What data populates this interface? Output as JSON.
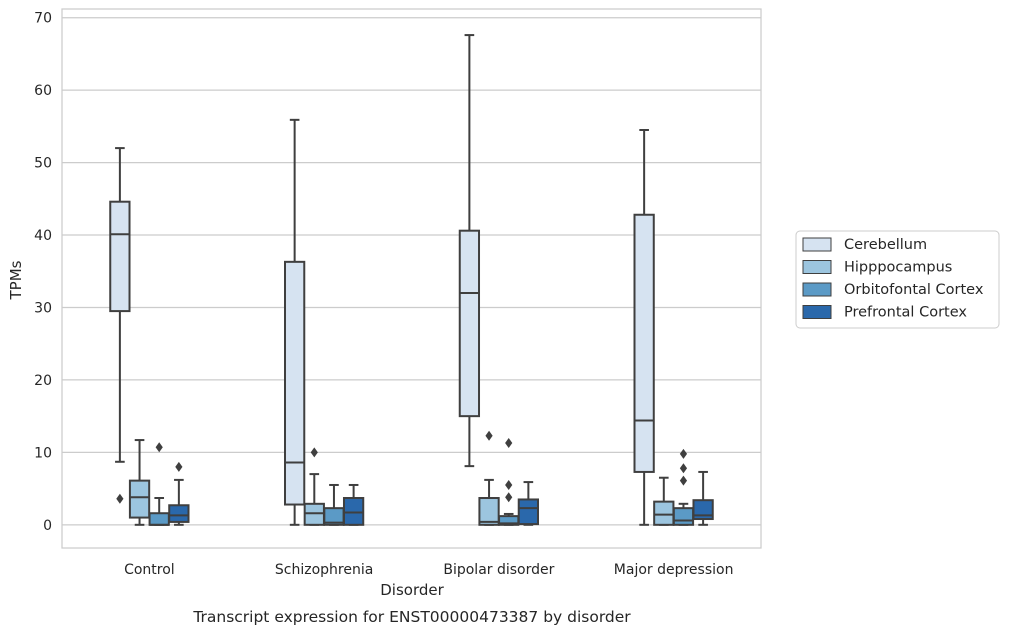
{
  "chart_data": {
    "type": "box",
    "caption": "Transcript expression for ENST00000473387 by disorder",
    "xlabel": "Disorder",
    "ylabel": "TPMs",
    "ylim": [
      -3.2,
      71.2
    ],
    "yticks": [
      0,
      10,
      20,
      30,
      40,
      50,
      60,
      70
    ],
    "grid": "horizontal",
    "legend_position": "right",
    "categories": [
      "Control",
      "Schizophrenia",
      "Bipolar disorder",
      "Major depression"
    ],
    "series": [
      {
        "name": "Cerebellum",
        "color": "#d6e3f1",
        "boxes": [
          {
            "whislo": 8.7,
            "q1": 29.5,
            "med": 40.1,
            "q3": 44.6,
            "whishi": 52.0,
            "fliers": [
              3.6
            ]
          },
          {
            "whislo": 0.0,
            "q1": 2.8,
            "med": 8.6,
            "q3": 36.3,
            "whishi": 55.9,
            "fliers": []
          },
          {
            "whislo": 8.1,
            "q1": 15.0,
            "med": 32.0,
            "q3": 40.6,
            "whishi": 67.6,
            "fliers": []
          },
          {
            "whislo": 0.0,
            "q1": 7.3,
            "med": 14.4,
            "q3": 42.8,
            "whishi": 54.5,
            "fliers": []
          }
        ]
      },
      {
        "name": "Hipppocampus",
        "color": "#9cc5df",
        "boxes": [
          {
            "whislo": 0.0,
            "q1": 1.0,
            "med": 3.8,
            "q3": 6.1,
            "whishi": 11.7,
            "fliers": []
          },
          {
            "whislo": 0.0,
            "q1": 0.0,
            "med": 1.6,
            "q3": 2.9,
            "whishi": 7.0,
            "fliers": [
              10.0
            ]
          },
          {
            "whislo": 0.0,
            "q1": 0.0,
            "med": 0.4,
            "q3": 3.7,
            "whishi": 6.2,
            "fliers": [
              12.3
            ]
          },
          {
            "whislo": 0.0,
            "q1": 0.0,
            "med": 1.4,
            "q3": 3.2,
            "whishi": 6.5,
            "fliers": []
          }
        ]
      },
      {
        "name": "Orbitofontal Cortex",
        "color": "#5b9ac6",
        "boxes": [
          {
            "whislo": 0.0,
            "q1": 0.0,
            "med": 0.0,
            "q3": 1.6,
            "whishi": 3.7,
            "fliers": [
              10.7
            ]
          },
          {
            "whislo": 0.0,
            "q1": 0.0,
            "med": 0.3,
            "q3": 2.3,
            "whishi": 5.5,
            "fliers": []
          },
          {
            "whislo": 0.0,
            "q1": 0.0,
            "med": 0.2,
            "q3": 1.2,
            "whishi": 1.5,
            "fliers": [
              3.8,
              5.5,
              11.3
            ]
          },
          {
            "whislo": 0.0,
            "q1": 0.0,
            "med": 0.6,
            "q3": 2.3,
            "whishi": 2.9,
            "fliers": [
              6.1,
              7.8,
              9.8
            ]
          }
        ]
      },
      {
        "name": "Prefrontal Cortex",
        "color": "#2a68ab",
        "boxes": [
          {
            "whislo": 0.0,
            "q1": 0.4,
            "med": 1.3,
            "q3": 2.7,
            "whishi": 6.2,
            "fliers": [
              8.0
            ]
          },
          {
            "whislo": 0.0,
            "q1": 0.0,
            "med": 1.7,
            "q3": 3.7,
            "whishi": 5.5,
            "fliers": []
          },
          {
            "whislo": 0.0,
            "q1": 0.1,
            "med": 2.3,
            "q3": 3.5,
            "whishi": 5.9,
            "fliers": []
          },
          {
            "whislo": 0.0,
            "q1": 0.8,
            "med": 1.3,
            "q3": 3.4,
            "whishi": 7.3,
            "fliers": []
          }
        ]
      }
    ]
  }
}
